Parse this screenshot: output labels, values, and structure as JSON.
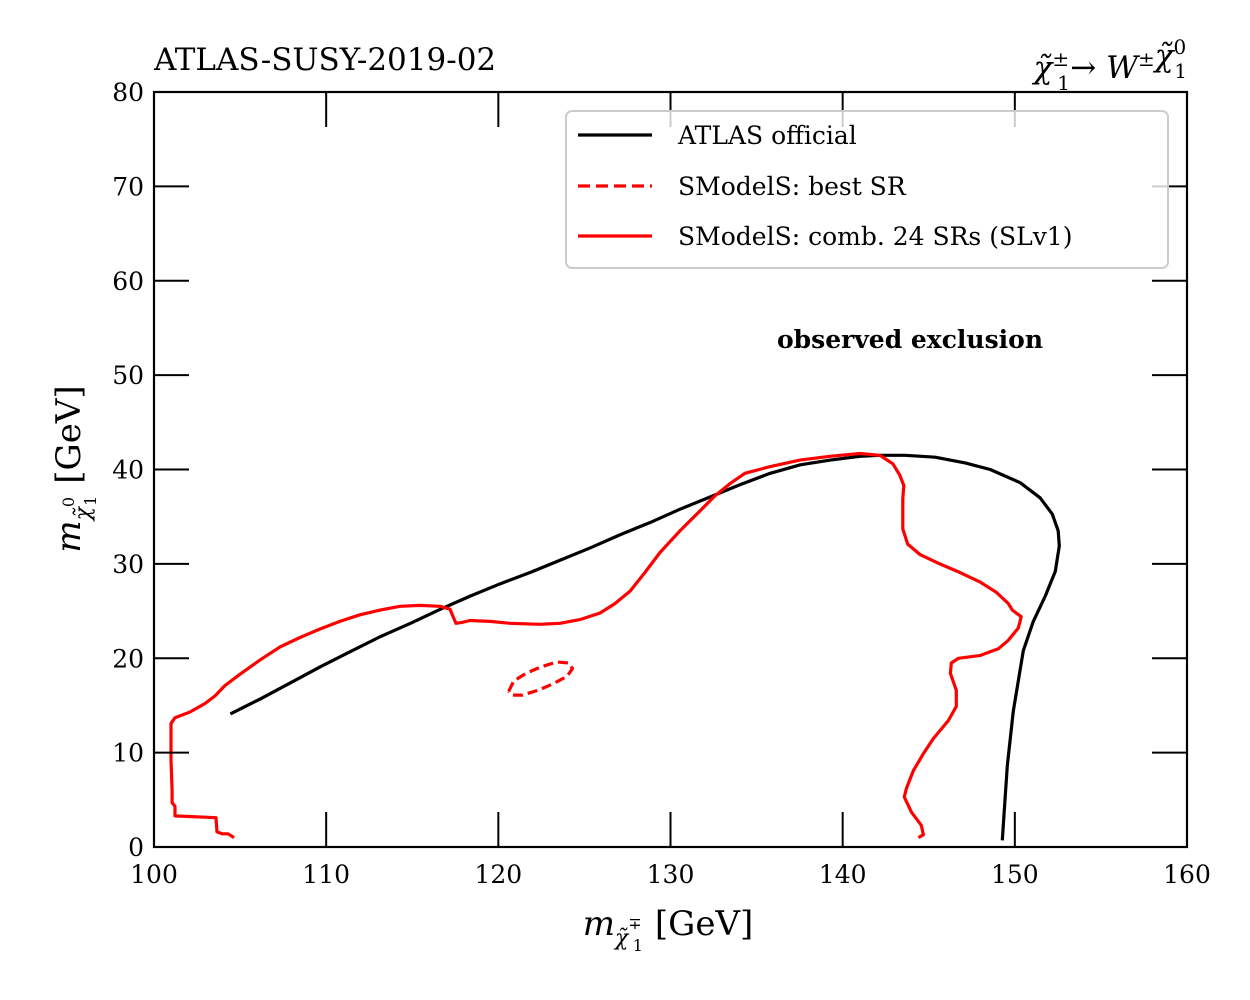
{
  "chart_data": {
    "type": "line",
    "title_left": "ATLAS-SUSY-2019-02",
    "title_right": {
      "text": "χ̃±1 → W± χ̃01",
      "parts": [
        {
          "t": "χ̃",
          "style": "italic"
        },
        {
          "t": "±",
          "style": "sup"
        },
        {
          "t": "1",
          "style": "sub"
        },
        {
          "t": " → ",
          "style": "normal"
        },
        {
          "t": "W",
          "style": "italic"
        },
        {
          "t": "±",
          "style": "sup"
        },
        {
          "t": "χ̃",
          "style": "italic"
        },
        {
          "t": "0",
          "style": "sup"
        },
        {
          "t": "1",
          "style": "sub"
        }
      ]
    },
    "xlabel": {
      "text": "m_{χ̃∓1} [GeV]",
      "main": "m",
      "sub_symbol": "χ̃",
      "sub_sup": "∓",
      "sub_sub": "1",
      "unit": "[GeV]"
    },
    "ylabel": {
      "text": "m_{χ̃01} [GeV]",
      "main": "m",
      "sub_symbol": "χ̃",
      "sub_sup": "0",
      "sub_sub": "1",
      "unit": "[GeV]"
    },
    "xlim": [
      100,
      160
    ],
    "ylim": [
      0,
      80
    ],
    "xticks": [
      100,
      110,
      120,
      130,
      140,
      150,
      160
    ],
    "yticks": [
      0,
      10,
      20,
      30,
      40,
      50,
      60,
      70,
      80
    ],
    "xtick_labels": [
      "100",
      "110",
      "120",
      "130",
      "140",
      "150",
      "160"
    ],
    "ytick_labels": [
      "0",
      "10",
      "20",
      "30",
      "40",
      "50",
      "60",
      "70",
      "80"
    ],
    "grid": false,
    "legend_position": "top-right",
    "annotation": "observed exclusion",
    "series": [
      {
        "name": "ATLAS official",
        "color": "#000000",
        "style": "solid",
        "points": [
          [
            104.44,
            14.1
          ],
          [
            106.19,
            15.7
          ],
          [
            107.93,
            17.4
          ],
          [
            109.67,
            19.1
          ],
          [
            111.41,
            20.7
          ],
          [
            113.16,
            22.3
          ],
          [
            114.9,
            23.7
          ],
          [
            116.64,
            25.2
          ],
          [
            118.38,
            26.6
          ],
          [
            120.12,
            27.9
          ],
          [
            121.86,
            29.1
          ],
          [
            123.6,
            30.4
          ],
          [
            125.35,
            31.7
          ],
          [
            127.09,
            33.1
          ],
          [
            128.83,
            34.4
          ],
          [
            130.57,
            35.8
          ],
          [
            132.31,
            37.1
          ],
          [
            134.05,
            38.4
          ],
          [
            135.79,
            39.6
          ],
          [
            137.54,
            40.5
          ],
          [
            139.28,
            41.0
          ],
          [
            141.02,
            41.4
          ],
          [
            142.18,
            41.5
          ],
          [
            143.63,
            41.5
          ],
          [
            145.37,
            41.3
          ],
          [
            147.12,
            40.7
          ],
          [
            148.57,
            40.0
          ],
          [
            150.31,
            38.6
          ],
          [
            151.47,
            37.0
          ],
          [
            152.17,
            35.3
          ],
          [
            152.52,
            33.5
          ],
          [
            152.58,
            31.9
          ],
          [
            152.35,
            29.2
          ],
          [
            151.77,
            26.6
          ],
          [
            151.07,
            23.9
          ],
          [
            150.49,
            20.8
          ],
          [
            149.91,
            14.4
          ],
          [
            149.56,
            8.6
          ],
          [
            149.39,
            3.9
          ],
          [
            149.27,
            0.7
          ]
        ]
      },
      {
        "name": "SModelS: best SR",
        "color": "#ff0000",
        "style": "dashed",
        "points": [
          [
            120.6,
            16.5
          ],
          [
            120.9,
            17.6
          ],
          [
            121.6,
            18.4
          ],
          [
            122.5,
            19.1
          ],
          [
            123.4,
            19.6
          ],
          [
            124.1,
            19.5
          ],
          [
            124.3,
            18.9
          ],
          [
            124.0,
            18.1
          ],
          [
            123.2,
            17.3
          ],
          [
            122.3,
            16.6
          ],
          [
            121.4,
            16.1
          ],
          [
            120.8,
            16.1
          ],
          [
            120.6,
            16.5
          ]
        ]
      },
      {
        "name": "SModelS: comb. 24 SRs (SLv1)",
        "color": "#ff0000",
        "style": "solid",
        "points": [
          [
            104.65,
            1.0
          ],
          [
            104.3,
            1.4
          ],
          [
            103.95,
            1.4
          ],
          [
            103.66,
            1.6
          ],
          [
            103.6,
            3.1
          ],
          [
            101.22,
            3.3
          ],
          [
            101.22,
            4.3
          ],
          [
            101.05,
            4.7
          ],
          [
            101.05,
            6.0
          ],
          [
            100.99,
            9.2
          ],
          [
            100.99,
            13.1
          ],
          [
            101.22,
            13.7
          ],
          [
            102.09,
            14.3
          ],
          [
            102.96,
            15.2
          ],
          [
            103.54,
            16.0
          ],
          [
            104.12,
            17.1
          ],
          [
            104.99,
            18.3
          ],
          [
            106.15,
            19.8
          ],
          [
            107.32,
            21.2
          ],
          [
            108.48,
            22.2
          ],
          [
            109.64,
            23.1
          ],
          [
            110.8,
            23.9
          ],
          [
            111.96,
            24.6
          ],
          [
            113.13,
            25.1
          ],
          [
            114.29,
            25.5
          ],
          [
            115.45,
            25.6
          ],
          [
            116.61,
            25.5
          ],
          [
            117.19,
            25.2
          ],
          [
            117.37,
            24.4
          ],
          [
            117.54,
            23.7
          ],
          [
            117.89,
            23.8
          ],
          [
            118.35,
            24.0
          ],
          [
            119.52,
            23.9
          ],
          [
            120.68,
            23.7
          ],
          [
            122.42,
            23.6
          ],
          [
            123.58,
            23.7
          ],
          [
            124.74,
            24.1
          ],
          [
            125.91,
            24.8
          ],
          [
            126.78,
            25.8
          ],
          [
            127.65,
            27.1
          ],
          [
            128.52,
            29.1
          ],
          [
            129.39,
            31.2
          ],
          [
            130.55,
            33.5
          ],
          [
            131.71,
            35.6
          ],
          [
            132.58,
            37.2
          ],
          [
            133.45,
            38.5
          ],
          [
            134.32,
            39.6
          ],
          [
            135.77,
            40.3
          ],
          [
            137.52,
            41.0
          ],
          [
            139.26,
            41.4
          ],
          [
            141.0,
            41.7
          ],
          [
            142.16,
            41.5
          ],
          [
            142.92,
            40.6
          ],
          [
            143.32,
            39.4
          ],
          [
            143.55,
            38.3
          ],
          [
            143.49,
            36.9
          ],
          [
            143.49,
            33.7
          ],
          [
            143.78,
            32.1
          ],
          [
            144.48,
            31.0
          ],
          [
            145.64,
            30.0
          ],
          [
            146.8,
            29.1
          ],
          [
            147.96,
            28.1
          ],
          [
            148.92,
            27.0
          ],
          [
            149.62,
            25.8
          ],
          [
            149.85,
            25.1
          ],
          [
            150.37,
            24.4
          ],
          [
            150.2,
            23.2
          ],
          [
            149.62,
            21.9
          ],
          [
            149.04,
            21.0
          ],
          [
            148.0,
            20.3
          ],
          [
            146.72,
            20.0
          ],
          [
            146.31,
            19.5
          ],
          [
            146.26,
            18.4
          ],
          [
            146.6,
            16.6
          ],
          [
            146.6,
            14.9
          ],
          [
            146.14,
            13.4
          ],
          [
            145.27,
            11.5
          ],
          [
            144.69,
            9.9
          ],
          [
            144.11,
            8.1
          ],
          [
            143.7,
            6.2
          ],
          [
            143.58,
            5.3
          ],
          [
            143.99,
            3.7
          ],
          [
            144.57,
            2.3
          ],
          [
            144.69,
            1.3
          ],
          [
            144.4,
            1.0
          ]
        ]
      }
    ]
  }
}
